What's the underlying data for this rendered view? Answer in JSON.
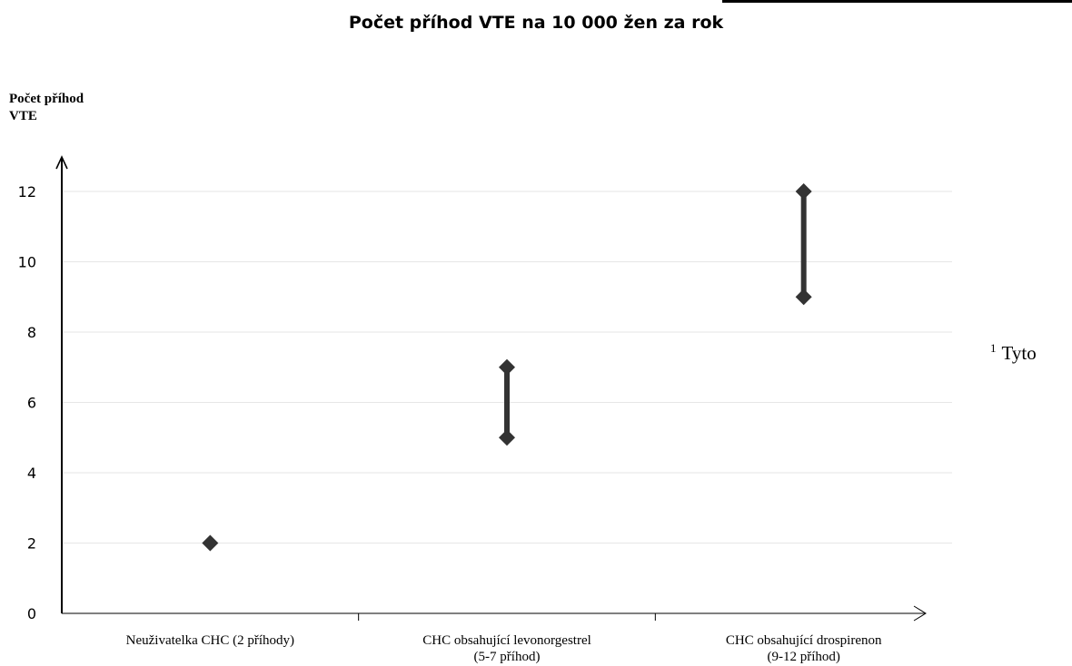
{
  "chart_data": {
    "type": "range",
    "title": "Počet příhod VTE na 10 000 žen za rok",
    "ylabel_lines": [
      "Počet příhod",
      "VTE"
    ],
    "ylim": [
      0,
      12
    ],
    "yticks": [
      0,
      2,
      4,
      6,
      8,
      10,
      12
    ],
    "grid": true,
    "categories": [
      {
        "lines": [
          "Neuživatelka CHC (2 příhody)"
        ],
        "low": 2,
        "high": 2
      },
      {
        "lines": [
          "CHC obsahující levonorgestrel",
          "(5-7 příhod)"
        ],
        "low": 5,
        "high": 7
      },
      {
        "lines": [
          "CHC obsahující drospirenon",
          "(9-12 příhod)"
        ],
        "low": 9,
        "high": 12
      }
    ]
  },
  "side_note": {
    "superscript": "1",
    "text": "Tyto"
  }
}
